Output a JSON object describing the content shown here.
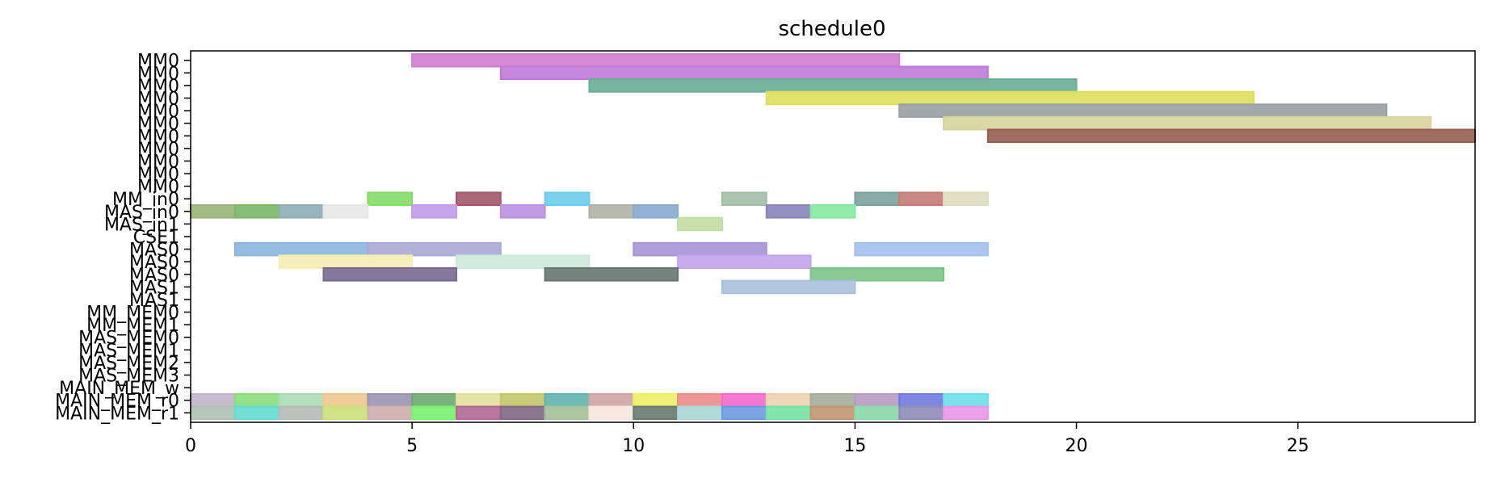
{
  "chart_data": {
    "type": "gantt",
    "title": "schedule0",
    "xlabel": "",
    "ylabel": "",
    "xlim": [
      0,
      29
    ],
    "x_ticks": [
      0,
      5,
      10,
      15,
      20,
      25
    ],
    "grid": false,
    "legend": "none",
    "rows": [
      "MM0",
      "MM0",
      "MM0",
      "MM0",
      "MM0",
      "MM0",
      "MM0",
      "MM0",
      "MM0",
      "MM0",
      "MM0",
      "MM_in0",
      "MAS_in0",
      "MAS_in1",
      "CSE1",
      "MAS0",
      "MAS0",
      "MAS0",
      "MAS1",
      "MAS1",
      "MM_MEM0",
      "MM_MEM1",
      "MAS_MEM0",
      "MAS_MEM1",
      "MAS_MEM2",
      "MAS_MEM3",
      "MAIN_MEM_w",
      "MAIN_MEM_r0",
      "MAIN_MEM_r1"
    ],
    "tasks": [
      {
        "row": 0,
        "start": 5,
        "end": 16,
        "color": "#d67fd6"
      },
      {
        "row": 1,
        "start": 7,
        "end": 18,
        "color": "#c47ddf"
      },
      {
        "row": 2,
        "start": 9,
        "end": 20,
        "color": "#6bb39a"
      },
      {
        "row": 3,
        "start": 13,
        "end": 24,
        "color": "#e3e55f"
      },
      {
        "row": 4,
        "start": 16,
        "end": 27,
        "color": "#9ba4a6"
      },
      {
        "row": 5,
        "start": 17,
        "end": 28,
        "color": "#dedaa0"
      },
      {
        "row": 6,
        "start": 18,
        "end": 29,
        "color": "#9a6153"
      },
      {
        "row": 11,
        "start": 4,
        "end": 5,
        "color": "#88e26b"
      },
      {
        "row": 11,
        "start": 6,
        "end": 7,
        "color": "#a75a6c"
      },
      {
        "row": 11,
        "start": 8,
        "end": 9,
        "color": "#6fd4f3"
      },
      {
        "row": 11,
        "start": 12,
        "end": 13,
        "color": "#a7c3ac"
      },
      {
        "row": 11,
        "start": 15,
        "end": 16,
        "color": "#7ea7a1"
      },
      {
        "row": 11,
        "start": 16,
        "end": 17,
        "color": "#c97f78"
      },
      {
        "row": 11,
        "start": 17,
        "end": 18,
        "color": "#e3e4c3"
      },
      {
        "row": 12,
        "start": 0,
        "end": 1,
        "color": "#9cb97a"
      },
      {
        "row": 12,
        "start": 1,
        "end": 2,
        "color": "#7ebe6a"
      },
      {
        "row": 12,
        "start": 2,
        "end": 3,
        "color": "#91b3bd"
      },
      {
        "row": 12,
        "start": 3,
        "end": 4,
        "color": "#eeeeee"
      },
      {
        "row": 12,
        "start": 5,
        "end": 6,
        "color": "#c6a0f1"
      },
      {
        "row": 12,
        "start": 7,
        "end": 8,
        "color": "#c195ea"
      },
      {
        "row": 12,
        "start": 9,
        "end": 10,
        "color": "#b6b7ac"
      },
      {
        "row": 12,
        "start": 10,
        "end": 11,
        "color": "#8daed6"
      },
      {
        "row": 12,
        "start": 13,
        "end": 14,
        "color": "#8e88c1"
      },
      {
        "row": 12,
        "start": 14,
        "end": 15,
        "color": "#89f0a6"
      },
      {
        "row": 13,
        "start": 11,
        "end": 12,
        "color": "#c8e4a6"
      },
      {
        "row": 15,
        "start": 1,
        "end": 4,
        "color": "#8dbbe4"
      },
      {
        "row": 15,
        "start": 4,
        "end": 7,
        "color": "#aeaedd"
      },
      {
        "row": 15,
        "start": 10,
        "end": 13,
        "color": "#ab98dd"
      },
      {
        "row": 15,
        "start": 15,
        "end": 18,
        "color": "#a6c5f2"
      },
      {
        "row": 16,
        "start": 2,
        "end": 5,
        "color": "#fdf5b7"
      },
      {
        "row": 16,
        "start": 6,
        "end": 9,
        "color": "#d2f1e1"
      },
      {
        "row": 16,
        "start": 11,
        "end": 14,
        "color": "#c9a8f0"
      },
      {
        "row": 17,
        "start": 3,
        "end": 6,
        "color": "#7c6b97"
      },
      {
        "row": 17,
        "start": 8,
        "end": 11,
        "color": "#6a7a74"
      },
      {
        "row": 17,
        "start": 14,
        "end": 17,
        "color": "#7fca8d"
      },
      {
        "row": 18,
        "start": 12,
        "end": 15,
        "color": "#aec4e1"
      },
      {
        "row": 27,
        "start": 0,
        "end": 1,
        "color": "#c6bbd0"
      },
      {
        "row": 27,
        "start": 1,
        "end": 2,
        "color": "#8fe37f"
      },
      {
        "row": 27,
        "start": 2,
        "end": 3,
        "color": "#aee3b9"
      },
      {
        "row": 27,
        "start": 3,
        "end": 4,
        "color": "#f6cd91"
      },
      {
        "row": 27,
        "start": 4,
        "end": 5,
        "color": "#9f98b6"
      },
      {
        "row": 27,
        "start": 5,
        "end": 6,
        "color": "#71ad71"
      },
      {
        "row": 27,
        "start": 6,
        "end": 7,
        "color": "#ebe8a3"
      },
      {
        "row": 27,
        "start": 7,
        "end": 8,
        "color": "#c9cc6d"
      },
      {
        "row": 27,
        "start": 8,
        "end": 9,
        "color": "#64b8b3"
      },
      {
        "row": 27,
        "start": 9,
        "end": 10,
        "color": "#d4aaa8"
      },
      {
        "row": 27,
        "start": 10,
        "end": 11,
        "color": "#f5f766"
      },
      {
        "row": 27,
        "start": 11,
        "end": 12,
        "color": "#f3908e"
      },
      {
        "row": 27,
        "start": 12,
        "end": 13,
        "color": "#fb6bd4"
      },
      {
        "row": 27,
        "start": 13,
        "end": 14,
        "color": "#f5d8b5"
      },
      {
        "row": 27,
        "start": 14,
        "end": 15,
        "color": "#a9b29f"
      },
      {
        "row": 27,
        "start": 15,
        "end": 16,
        "color": "#bb9fc9"
      },
      {
        "row": 27,
        "start": 16,
        "end": 17,
        "color": "#737de8"
      },
      {
        "row": 27,
        "start": 17,
        "end": 18,
        "color": "#6fe5ee"
      },
      {
        "row": 28,
        "start": 0,
        "end": 1,
        "color": "#b5c6b8"
      },
      {
        "row": 28,
        "start": 1,
        "end": 2,
        "color": "#65e2d6"
      },
      {
        "row": 28,
        "start": 2,
        "end": 3,
        "color": "#b9c1bb"
      },
      {
        "row": 28,
        "start": 3,
        "end": 4,
        "color": "#d4e67d"
      },
      {
        "row": 28,
        "start": 4,
        "end": 5,
        "color": "#d5b3b3"
      },
      {
        "row": 28,
        "start": 5,
        "end": 6,
        "color": "#7cf770"
      },
      {
        "row": 28,
        "start": 6,
        "end": 7,
        "color": "#b76c95"
      },
      {
        "row": 28,
        "start": 7,
        "end": 8,
        "color": "#836d86"
      },
      {
        "row": 28,
        "start": 8,
        "end": 9,
        "color": "#aac69f"
      },
      {
        "row": 28,
        "start": 9,
        "end": 10,
        "color": "#fdeee3"
      },
      {
        "row": 28,
        "start": 10,
        "end": 11,
        "color": "#6c7d72"
      },
      {
        "row": 28,
        "start": 11,
        "end": 12,
        "color": "#addedc"
      },
      {
        "row": 28,
        "start": 12,
        "end": 13,
        "color": "#6f9ee5"
      },
      {
        "row": 28,
        "start": 13,
        "end": 14,
        "color": "#7aeaa9"
      },
      {
        "row": 28,
        "start": 14,
        "end": 15,
        "color": "#c59a76"
      },
      {
        "row": 28,
        "start": 15,
        "end": 16,
        "color": "#8ee0ad"
      },
      {
        "row": 28,
        "start": 16,
        "end": 17,
        "color": "#958fbd"
      },
      {
        "row": 28,
        "start": 17,
        "end": 18,
        "color": "#ef9bef"
      }
    ]
  }
}
